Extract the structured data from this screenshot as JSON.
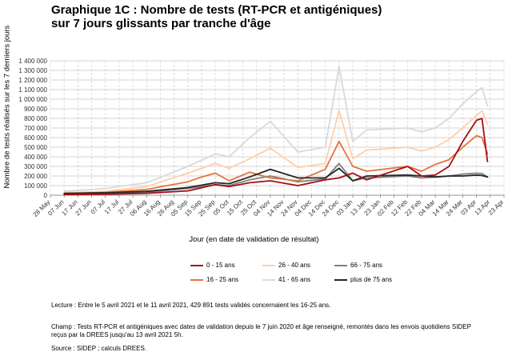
{
  "title_line1": "Graphique 1C : Nombre de tests (RT-PCR et antigéniques)",
  "title_line2": "sur 7 jours glissants par tranche d'âge",
  "notes": {
    "lecture": "Lecture : Entre le 5 avril 2021 et le 11 avril 2021, 429 891 tests validés concernaient les 16-25 ans.",
    "champ": "Champ : Tests RT-PCR et antigéniques avec dates de validation depuis le 7 juin 2020 et âge renseigné, remontés dans les envois quotidiens SIDEP reçus par la DREES jusqu'au 13 avril 2021 5h.",
    "source": "Source : SIDEP ; calculs DREES."
  },
  "chart_data": {
    "type": "line",
    "title": "Graphique 1C : Nombre de tests (RT-PCR et antigéniques) sur 7 jours glissants par tranche d'âge",
    "xlabel": "Jour (en date de validation de résultat)",
    "ylabel": "Nombre de tests réalisés sur les 7 derniers jours",
    "ylim": [
      0,
      1400000
    ],
    "yticks": [
      0,
      100000,
      200000,
      300000,
      400000,
      500000,
      600000,
      700000,
      800000,
      900000,
      1000000,
      1100000,
      1200000,
      1300000,
      1400000
    ],
    "ytick_labels": [
      "0",
      "100 000",
      "200 000",
      "300 000",
      "400 000",
      "500 000",
      "600 000",
      "700 000",
      "800 000",
      "900 000",
      "1 000 000",
      "1 100 000",
      "1 200 000",
      "1 300 000",
      "1 400 000"
    ],
    "xrange": [
      "2020-05-28",
      "2021-04-23"
    ],
    "xticks": [
      "2020-05-28",
      "2020-06-07",
      "2020-06-17",
      "2020-06-27",
      "2020-07-07",
      "2020-07-17",
      "2020-07-27",
      "2020-08-06",
      "2020-08-16",
      "2020-08-26",
      "2020-09-05",
      "2020-09-15",
      "2020-09-25",
      "2020-10-05",
      "2020-10-15",
      "2020-10-25",
      "2020-11-04",
      "2020-11-14",
      "2020-11-24",
      "2020-12-04",
      "2020-12-14",
      "2020-12-24",
      "2021-01-03",
      "2021-01-13",
      "2021-01-23",
      "2021-02-02",
      "2021-02-12",
      "2021-02-22",
      "2021-03-04",
      "2021-03-14",
      "2021-03-24",
      "2021-04-03",
      "2021-04-13",
      "2021-04-23"
    ],
    "xtick_labels": [
      "28 May",
      "07 Jun",
      "17 Jun",
      "27 Jun",
      "07 Jul",
      "17 Jul",
      "27 Jul",
      "06 Aug",
      "16 Aug",
      "26 Aug",
      "05 Sep",
      "15 Sep",
      "25 Sep",
      "05 Oct",
      "15 Oct",
      "25 Oct",
      "04 Nov",
      "14 Nov",
      "24 Nov",
      "04 Dec",
      "14 Dec",
      "24 Dec",
      "03 Jan",
      "13 Jan",
      "23 Jan",
      "02 Feb",
      "12 Feb",
      "22 Feb",
      "04 Mar",
      "14 Mar",
      "24 Mar",
      "03 Apr",
      "13 Apr",
      "23 Apr"
    ],
    "grid": true,
    "legend_position": "bottom",
    "series": [
      {
        "name": "0 - 15 ans",
        "color": "#a50f15",
        "x": [
          "2020-06-07",
          "2020-07-07",
          "2020-08-06",
          "2020-09-05",
          "2020-09-25",
          "2020-10-05",
          "2020-10-20",
          "2020-11-04",
          "2020-11-24",
          "2020-12-14",
          "2020-12-24",
          "2021-01-03",
          "2021-01-13",
          "2021-02-12",
          "2021-02-22",
          "2021-03-04",
          "2021-03-14",
          "2021-03-24",
          "2021-04-03",
          "2021-04-07",
          "2021-04-11"
        ],
        "y": [
          5000,
          10000,
          20000,
          45000,
          110000,
          90000,
          130000,
          150000,
          100000,
          160000,
          180000,
          230000,
          160000,
          300000,
          200000,
          210000,
          300000,
          560000,
          780000,
          800000,
          350000
        ]
      },
      {
        "name": "16 - 25 ans",
        "color": "#e6733c",
        "x": [
          "2020-06-07",
          "2020-07-07",
          "2020-08-06",
          "2020-09-05",
          "2020-09-15",
          "2020-09-25",
          "2020-10-05",
          "2020-10-20",
          "2020-11-04",
          "2020-11-24",
          "2020-12-14",
          "2020-12-24",
          "2021-01-03",
          "2021-01-13",
          "2021-02-12",
          "2021-02-22",
          "2021-03-04",
          "2021-03-14",
          "2021-03-24",
          "2021-04-03",
          "2021-04-07",
          "2021-04-11"
        ],
        "y": [
          15000,
          30000,
          60000,
          140000,
          190000,
          230000,
          150000,
          240000,
          180000,
          150000,
          270000,
          560000,
          300000,
          250000,
          300000,
          250000,
          320000,
          370000,
          500000,
          620000,
          600000,
          429891
        ]
      },
      {
        "name": "26 - 40 ans",
        "color": "#fdcfa9",
        "x": [
          "2020-06-07",
          "2020-07-07",
          "2020-08-06",
          "2020-09-05",
          "2020-09-25",
          "2020-10-05",
          "2020-10-20",
          "2020-11-04",
          "2020-11-24",
          "2020-12-14",
          "2020-12-24",
          "2021-01-03",
          "2021-01-13",
          "2021-02-12",
          "2021-02-22",
          "2021-03-04",
          "2021-03-14",
          "2021-03-24",
          "2021-04-03",
          "2021-04-07",
          "2021-04-11"
        ],
        "y": [
          25000,
          40000,
          90000,
          230000,
          330000,
          280000,
          380000,
          490000,
          290000,
          330000,
          880000,
          380000,
          470000,
          500000,
          460000,
          500000,
          580000,
          700000,
          830000,
          880000,
          740000
        ]
      },
      {
        "name": "41 - 65 ans",
        "color": "#d9d9d9",
        "x": [
          "2020-06-07",
          "2020-07-07",
          "2020-08-06",
          "2020-09-05",
          "2020-09-25",
          "2020-10-05",
          "2020-10-20",
          "2020-11-04",
          "2020-11-24",
          "2020-12-14",
          "2020-12-24",
          "2021-01-03",
          "2021-01-13",
          "2021-02-12",
          "2021-02-22",
          "2021-03-04",
          "2021-03-14",
          "2021-03-24",
          "2021-04-03",
          "2021-04-07",
          "2021-04-11"
        ],
        "y": [
          40000,
          70000,
          130000,
          300000,
          430000,
          400000,
          600000,
          770000,
          450000,
          500000,
          1340000,
          560000,
          680000,
          700000,
          660000,
          700000,
          800000,
          950000,
          1080000,
          1120000,
          930000
        ]
      },
      {
        "name": "66 - 75 ans",
        "color": "#7f7f7f",
        "x": [
          "2020-06-07",
          "2020-07-07",
          "2020-08-06",
          "2020-09-05",
          "2020-09-25",
          "2020-10-05",
          "2020-10-20",
          "2020-11-04",
          "2020-11-24",
          "2020-12-14",
          "2020-12-24",
          "2021-01-03",
          "2021-01-13",
          "2021-02-12",
          "2021-02-22",
          "2021-03-04",
          "2021-03-14",
          "2021-03-24",
          "2021-04-03",
          "2021-04-07",
          "2021-04-11"
        ],
        "y": [
          10000,
          20000,
          30000,
          70000,
          110000,
          100000,
          160000,
          200000,
          140000,
          170000,
          330000,
          150000,
          180000,
          200000,
          180000,
          190000,
          200000,
          220000,
          230000,
          225000,
          190000
        ]
      },
      {
        "name": "plus de 75 ans",
        "color": "#262626",
        "x": [
          "2020-06-07",
          "2020-07-07",
          "2020-08-06",
          "2020-09-05",
          "2020-09-25",
          "2020-10-05",
          "2020-10-20",
          "2020-11-04",
          "2020-11-24",
          "2020-12-14",
          "2020-12-24",
          "2021-01-03",
          "2021-01-13",
          "2021-02-12",
          "2021-02-22",
          "2021-03-04",
          "2021-03-14",
          "2021-03-24",
          "2021-04-03",
          "2021-04-07",
          "2021-04-11"
        ],
        "y": [
          20000,
          25000,
          40000,
          80000,
          130000,
          120000,
          190000,
          270000,
          180000,
          180000,
          280000,
          150000,
          200000,
          210000,
          200000,
          190000,
          200000,
          200000,
          210000,
          205000,
          190000
        ]
      }
    ]
  }
}
